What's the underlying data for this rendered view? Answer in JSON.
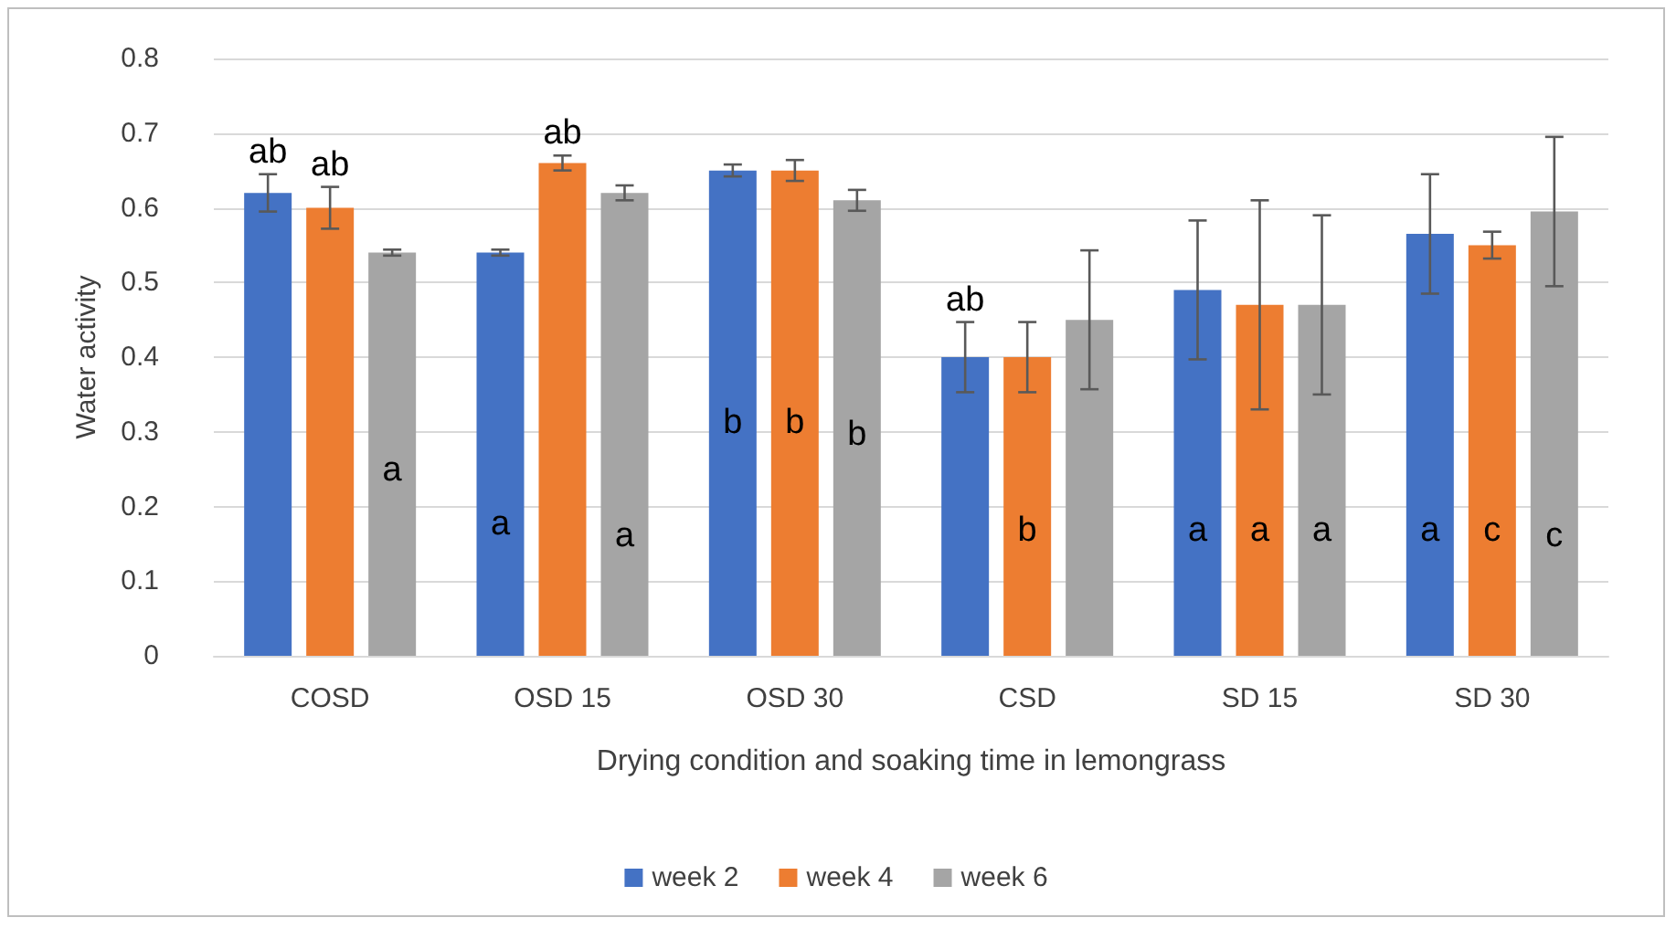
{
  "chart_data": {
    "type": "bar",
    "xlabel": "Drying condition and soaking time in lemongrass",
    "ylabel": "Water activity",
    "categories": [
      "COSD",
      "OSD 15",
      "OSD 30",
      "CSD",
      "SD 15",
      "SD 30"
    ],
    "series": [
      {
        "name": "week 2",
        "color": "#4472c4",
        "values": [
          0.62,
          0.54,
          0.65,
          0.4,
          0.49,
          0.565
        ],
        "errors": [
          0.025,
          0.004,
          0.008,
          0.047,
          0.093,
          0.08
        ],
        "value_labels": [
          "ab",
          "a",
          "b",
          "ab",
          "a",
          "a"
        ]
      },
      {
        "name": "week 4",
        "color": "#ed7d31",
        "values": [
          0.6,
          0.66,
          0.65,
          0.4,
          0.47,
          0.55
        ],
        "errors": [
          0.028,
          0.01,
          0.014,
          0.047,
          0.14,
          0.018
        ],
        "value_labels": [
          "ab",
          "ab",
          "b",
          "b",
          "a",
          "c"
        ]
      },
      {
        "name": "week 6",
        "color": "#a5a5a5",
        "values": [
          0.54,
          0.62,
          0.61,
          0.45,
          0.47,
          0.595
        ],
        "errors": [
          0.004,
          0.01,
          0.014,
          0.093,
          0.12,
          0.1
        ],
        "value_labels": [
          "a",
          "a",
          "b",
          null,
          "a",
          "c"
        ]
      }
    ],
    "ylim": [
      0,
      0.8
    ],
    "yticks": [
      0,
      0.1,
      0.2,
      0.3,
      0.4,
      0.5,
      0.6,
      0.7,
      0.8
    ],
    "grid": "y",
    "legend": "bottom"
  }
}
